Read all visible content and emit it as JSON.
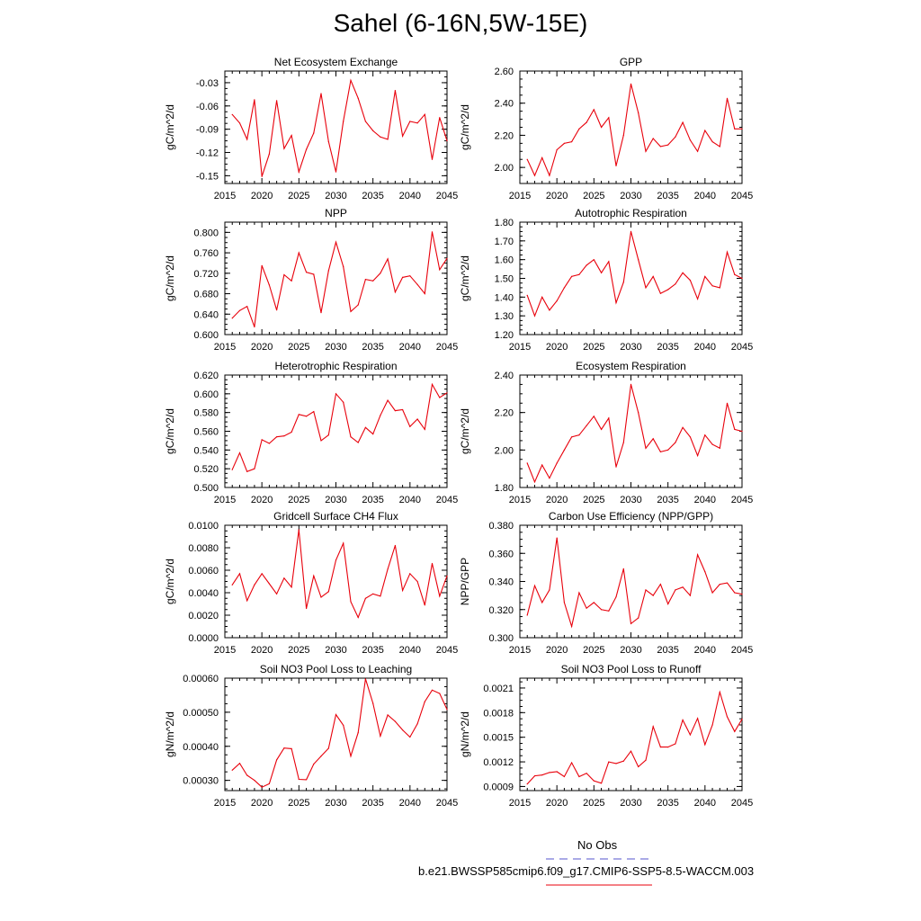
{
  "figure": {
    "title": "Sahel (6-16N,5W-15E)"
  },
  "legend": {
    "obs_label": "No Obs",
    "obs_color": "#5555cc",
    "model_label": "b.e21.BWSSP585cmip6.f09_g17.CMIP6-SSP5-8.5-WACCM.003",
    "model_color": "#e8000b"
  },
  "chart_data": [
    {
      "type": "line",
      "title": "Net Ecosystem Exchange",
      "ylabel": "gC/m^2/d",
      "xlim": [
        2015,
        2045
      ],
      "ylim": [
        -0.16,
        -0.015
      ],
      "xticks": [
        2015,
        2020,
        2025,
        2030,
        2035,
        2040,
        2045
      ],
      "xtick_labels": [
        "2015",
        "2020",
        "2025",
        "2030",
        "2035",
        "2040",
        "2045"
      ],
      "yticks": [
        -0.15,
        -0.12,
        -0.09,
        -0.06,
        -0.03
      ],
      "ytick_labels": [
        "-0.15",
        "-0.12",
        "-0.09",
        "-0.06",
        "-0.03"
      ],
      "x": [
        2016,
        2017,
        2018,
        2019,
        2020,
        2021,
        2022,
        2023,
        2024,
        2025,
        2026,
        2027,
        2028,
        2029,
        2030,
        2031,
        2032,
        2033,
        2034,
        2035,
        2036,
        2037,
        2038,
        2039,
        2040,
        2041,
        2042,
        2043,
        2044,
        2045
      ],
      "series": [
        {
          "name": "model",
          "values": [
            -0.071,
            -0.082,
            -0.103,
            -0.052,
            -0.151,
            -0.122,
            -0.053,
            -0.115,
            -0.098,
            -0.145,
            -0.116,
            -0.095,
            -0.044,
            -0.106,
            -0.145,
            -0.08,
            -0.027,
            -0.05,
            -0.08,
            -0.092,
            -0.1,
            -0.103,
            -0.04,
            -0.099,
            -0.08,
            -0.082,
            -0.071,
            -0.129,
            -0.075,
            -0.105
          ]
        }
      ]
    },
    {
      "type": "line",
      "title": "GPP",
      "ylabel": "gC/m^2/d",
      "xlim": [
        2015,
        2045
      ],
      "ylim": [
        1.9,
        2.6
      ],
      "xticks": [
        2015,
        2020,
        2025,
        2030,
        2035,
        2040,
        2045
      ],
      "xtick_labels": [
        "2015",
        "2020",
        "2025",
        "2030",
        "2035",
        "2040",
        "2045"
      ],
      "yticks": [
        2.0,
        2.2,
        2.4,
        2.6
      ],
      "ytick_labels": [
        "2.00",
        "2.20",
        "2.40",
        "2.60"
      ],
      "x": [
        2016,
        2017,
        2018,
        2019,
        2020,
        2021,
        2022,
        2023,
        2024,
        2025,
        2026,
        2027,
        2028,
        2029,
        2030,
        2031,
        2032,
        2033,
        2034,
        2035,
        2036,
        2037,
        2038,
        2039,
        2040,
        2041,
        2042,
        2043,
        2044,
        2045
      ],
      "series": [
        {
          "name": "model",
          "values": [
            2.05,
            1.95,
            2.06,
            1.95,
            2.11,
            2.15,
            2.16,
            2.24,
            2.28,
            2.36,
            2.25,
            2.31,
            2.01,
            2.2,
            2.52,
            2.34,
            2.1,
            2.18,
            2.13,
            2.14,
            2.19,
            2.28,
            2.17,
            2.1,
            2.23,
            2.16,
            2.13,
            2.43,
            2.24,
            2.24
          ]
        }
      ]
    },
    {
      "type": "line",
      "title": "NPP",
      "ylabel": "gC/m^2/d",
      "xlim": [
        2015,
        2045
      ],
      "ylim": [
        0.6,
        0.82
      ],
      "xticks": [
        2015,
        2020,
        2025,
        2030,
        2035,
        2040,
        2045
      ],
      "xtick_labels": [
        "2015",
        "2020",
        "2025",
        "2030",
        "2035",
        "2040",
        "2045"
      ],
      "yticks": [
        0.6,
        0.64,
        0.68,
        0.72,
        0.76,
        0.8
      ],
      "ytick_labels": [
        "0.600",
        "0.640",
        "0.680",
        "0.720",
        "0.760",
        "0.800"
      ],
      "x": [
        2016,
        2017,
        2018,
        2019,
        2020,
        2021,
        2022,
        2023,
        2024,
        2025,
        2026,
        2027,
        2028,
        2029,
        2030,
        2031,
        2032,
        2033,
        2034,
        2035,
        2036,
        2037,
        2038,
        2039,
        2040,
        2041,
        2042,
        2043,
        2044,
        2045
      ],
      "series": [
        {
          "name": "model",
          "values": [
            0.632,
            0.647,
            0.655,
            0.615,
            0.735,
            0.697,
            0.648,
            0.717,
            0.705,
            0.76,
            0.722,
            0.718,
            0.643,
            0.725,
            0.781,
            0.733,
            0.645,
            0.658,
            0.708,
            0.705,
            0.72,
            0.748,
            0.683,
            0.712,
            0.715,
            0.698,
            0.68,
            0.801,
            0.727,
            0.749
          ]
        }
      ]
    },
    {
      "type": "line",
      "title": "Autotrophic Respiration",
      "ylabel": "gC/m^2/d",
      "xlim": [
        2015,
        2045
      ],
      "ylim": [
        1.2,
        1.8
      ],
      "xticks": [
        2015,
        2020,
        2025,
        2030,
        2035,
        2040,
        2045
      ],
      "xtick_labels": [
        "2015",
        "2020",
        "2025",
        "2030",
        "2035",
        "2040",
        "2045"
      ],
      "yticks": [
        1.2,
        1.3,
        1.4,
        1.5,
        1.6,
        1.7,
        1.8
      ],
      "ytick_labels": [
        "1.20",
        "1.30",
        "1.40",
        "1.50",
        "1.60",
        "1.70",
        "1.80"
      ],
      "x": [
        2016,
        2017,
        2018,
        2019,
        2020,
        2021,
        2022,
        2023,
        2024,
        2025,
        2026,
        2027,
        2028,
        2029,
        2030,
        2031,
        2032,
        2033,
        2034,
        2035,
        2036,
        2037,
        2038,
        2039,
        2040,
        2041,
        2042,
        2043,
        2044,
        2045
      ],
      "series": [
        {
          "name": "model",
          "values": [
            1.41,
            1.3,
            1.4,
            1.33,
            1.38,
            1.45,
            1.51,
            1.52,
            1.57,
            1.6,
            1.53,
            1.59,
            1.37,
            1.48,
            1.75,
            1.6,
            1.45,
            1.51,
            1.42,
            1.44,
            1.47,
            1.53,
            1.49,
            1.39,
            1.51,
            1.46,
            1.45,
            1.64,
            1.52,
            1.5
          ]
        }
      ]
    },
    {
      "type": "line",
      "title": "Heterotrophic Respiration",
      "ylabel": "gC/m^2/d",
      "xlim": [
        2015,
        2045
      ],
      "ylim": [
        0.5,
        0.62
      ],
      "xticks": [
        2015,
        2020,
        2025,
        2030,
        2035,
        2040,
        2045
      ],
      "xtick_labels": [
        "2015",
        "2020",
        "2025",
        "2030",
        "2035",
        "2040",
        "2045"
      ],
      "yticks": [
        0.5,
        0.52,
        0.54,
        0.56,
        0.58,
        0.6,
        0.62
      ],
      "ytick_labels": [
        "0.500",
        "0.520",
        "0.540",
        "0.560",
        "0.580",
        "0.600",
        "0.620"
      ],
      "x": [
        2016,
        2017,
        2018,
        2019,
        2020,
        2021,
        2022,
        2023,
        2024,
        2025,
        2026,
        2027,
        2028,
        2029,
        2030,
        2031,
        2032,
        2033,
        2034,
        2035,
        2036,
        2037,
        2038,
        2039,
        2040,
        2041,
        2042,
        2043,
        2044,
        2045
      ],
      "series": [
        {
          "name": "model",
          "values": [
            0.519,
            0.537,
            0.517,
            0.52,
            0.551,
            0.547,
            0.554,
            0.555,
            0.559,
            0.578,
            0.576,
            0.581,
            0.55,
            0.556,
            0.6,
            0.591,
            0.554,
            0.548,
            0.564,
            0.557,
            0.577,
            0.593,
            0.582,
            0.583,
            0.565,
            0.573,
            0.562,
            0.61,
            0.596,
            0.601
          ]
        }
      ]
    },
    {
      "type": "line",
      "title": "Ecosystem Respiration",
      "ylabel": "gC/m^2/d",
      "xlim": [
        2015,
        2045
      ],
      "ylim": [
        1.8,
        2.4
      ],
      "xticks": [
        2015,
        2020,
        2025,
        2030,
        2035,
        2040,
        2045
      ],
      "xtick_labels": [
        "2015",
        "2020",
        "2025",
        "2030",
        "2035",
        "2040",
        "2045"
      ],
      "yticks": [
        1.8,
        2.0,
        2.2,
        2.4
      ],
      "ytick_labels": [
        "1.80",
        "2.00",
        "2.20",
        "2.40"
      ],
      "x": [
        2016,
        2017,
        2018,
        2019,
        2020,
        2021,
        2022,
        2023,
        2024,
        2025,
        2026,
        2027,
        2028,
        2029,
        2030,
        2031,
        2032,
        2033,
        2034,
        2035,
        2036,
        2037,
        2038,
        2039,
        2040,
        2041,
        2042,
        2043,
        2044,
        2045
      ],
      "series": [
        {
          "name": "model",
          "values": [
            1.93,
            1.83,
            1.92,
            1.85,
            1.93,
            2.0,
            2.07,
            2.08,
            2.13,
            2.18,
            2.11,
            2.17,
            1.91,
            2.04,
            2.35,
            2.2,
            2.01,
            2.06,
            1.99,
            2.0,
            2.04,
            2.12,
            2.07,
            1.97,
            2.08,
            2.03,
            2.01,
            2.25,
            2.11,
            2.1
          ]
        }
      ]
    },
    {
      "type": "line",
      "title": "Gridcell Surface CH4 Flux",
      "ylabel": "gC/m^2/d",
      "xlim": [
        2015,
        2045
      ],
      "ylim": [
        0.0,
        0.01
      ],
      "xticks": [
        2015,
        2020,
        2025,
        2030,
        2035,
        2040,
        2045
      ],
      "xtick_labels": [
        "2015",
        "2020",
        "2025",
        "2030",
        "2035",
        "2040",
        "2045"
      ],
      "yticks": [
        0.0,
        0.002,
        0.004,
        0.006,
        0.008,
        0.01
      ],
      "ytick_labels": [
        "0.0000",
        "0.0020",
        "0.0040",
        "0.0060",
        "0.0080",
        "0.0100"
      ],
      "x": [
        2016,
        2017,
        2018,
        2019,
        2020,
        2021,
        2022,
        2023,
        2024,
        2025,
        2026,
        2027,
        2028,
        2029,
        2030,
        2031,
        2032,
        2033,
        2034,
        2035,
        2036,
        2037,
        2038,
        2039,
        2040,
        2041,
        2042,
        2043,
        2044,
        2045
      ],
      "series": [
        {
          "name": "model",
          "values": [
            0.0047,
            0.0057,
            0.0033,
            0.0047,
            0.0057,
            0.0048,
            0.0039,
            0.0053,
            0.0045,
            0.0096,
            0.0026,
            0.0055,
            0.0036,
            0.0041,
            0.0069,
            0.0084,
            0.0032,
            0.0018,
            0.0035,
            0.0039,
            0.0037,
            0.0061,
            0.0082,
            0.0042,
            0.0057,
            0.005,
            0.0029,
            0.0066,
            0.0037,
            0.0055
          ]
        }
      ]
    },
    {
      "type": "line",
      "title": "Carbon Use Efficiency (NPP/GPP)",
      "ylabel": "NPP/GPP",
      "xlim": [
        2015,
        2045
      ],
      "ylim": [
        0.3,
        0.38
      ],
      "xticks": [
        2015,
        2020,
        2025,
        2030,
        2035,
        2040,
        2045
      ],
      "xtick_labels": [
        "2015",
        "2020",
        "2025",
        "2030",
        "2035",
        "2040",
        "2045"
      ],
      "yticks": [
        0.3,
        0.32,
        0.34,
        0.36,
        0.38
      ],
      "ytick_labels": [
        "0.300",
        "0.320",
        "0.340",
        "0.360",
        "0.380"
      ],
      "x": [
        2016,
        2017,
        2018,
        2019,
        2020,
        2021,
        2022,
        2023,
        2024,
        2025,
        2026,
        2027,
        2028,
        2029,
        2030,
        2031,
        2032,
        2033,
        2034,
        2035,
        2036,
        2037,
        2038,
        2039,
        2040,
        2041,
        2042,
        2043,
        2044,
        2045
      ],
      "series": [
        {
          "name": "model",
          "values": [
            0.316,
            0.337,
            0.325,
            0.334,
            0.371,
            0.325,
            0.308,
            0.332,
            0.321,
            0.325,
            0.32,
            0.319,
            0.329,
            0.349,
            0.31,
            0.314,
            0.334,
            0.33,
            0.338,
            0.324,
            0.334,
            0.336,
            0.33,
            0.359,
            0.347,
            0.332,
            0.338,
            0.339,
            0.332,
            0.331
          ]
        }
      ]
    },
    {
      "type": "line",
      "title": "Soil NO3 Pool Loss to Leaching",
      "ylabel": "gN/m^2/d",
      "xlim": [
        2015,
        2045
      ],
      "ylim": [
        0.00027,
        0.0006
      ],
      "xticks": [
        2015,
        2020,
        2025,
        2030,
        2035,
        2040,
        2045
      ],
      "xtick_labels": [
        "2015",
        "2020",
        "2025",
        "2030",
        "2035",
        "2040",
        "2045"
      ],
      "yticks": [
        0.0003,
        0.0004,
        0.0005,
        0.0006
      ],
      "ytick_labels": [
        "0.00030",
        "0.00040",
        "0.00050",
        "0.00060"
      ],
      "x": [
        2016,
        2017,
        2018,
        2019,
        2020,
        2021,
        2022,
        2023,
        2024,
        2025,
        2026,
        2027,
        2028,
        2029,
        2030,
        2031,
        2032,
        2033,
        2034,
        2035,
        2036,
        2037,
        2038,
        2039,
        2040,
        2041,
        2042,
        2043,
        2044,
        2045
      ],
      "series": [
        {
          "name": "model",
          "values": [
            0.00033,
            0.00035,
            0.000315,
            0.0003,
            0.00028,
            0.00029,
            0.00036,
            0.000395,
            0.000393,
            0.000303,
            0.000302,
            0.000348,
            0.000371,
            0.000394,
            0.000493,
            0.000462,
            0.000371,
            0.00044,
            0.000598,
            0.000526,
            0.00043,
            0.000492,
            0.000473,
            0.000448,
            0.000427,
            0.000466,
            0.000531,
            0.000565,
            0.000555,
            0.000508
          ]
        }
      ]
    },
    {
      "type": "line",
      "title": "Soil NO3 Pool Loss to Runoff",
      "ylabel": "gN/m^2/d",
      "xlim": [
        2015,
        2045
      ],
      "ylim": [
        0.00085,
        0.00222
      ],
      "xticks": [
        2015,
        2020,
        2025,
        2030,
        2035,
        2040,
        2045
      ],
      "xtick_labels": [
        "2015",
        "2020",
        "2025",
        "2030",
        "2035",
        "2040",
        "2045"
      ],
      "yticks": [
        0.0009,
        0.0012,
        0.0015,
        0.0018,
        0.0021
      ],
      "ytick_labels": [
        "0.0009",
        "0.0012",
        "0.0015",
        "0.0018",
        "0.0021"
      ],
      "x": [
        2016,
        2017,
        2018,
        2019,
        2020,
        2021,
        2022,
        2023,
        2024,
        2025,
        2026,
        2027,
        2028,
        2029,
        2030,
        2031,
        2032,
        2033,
        2034,
        2035,
        2036,
        2037,
        2038,
        2039,
        2040,
        2041,
        2042,
        2043,
        2044,
        2045
      ],
      "series": [
        {
          "name": "model",
          "values": [
            0.00093,
            0.00103,
            0.00104,
            0.00107,
            0.00108,
            0.00102,
            0.00119,
            0.00102,
            0.00106,
            0.00097,
            0.00094,
            0.0012,
            0.00118,
            0.00121,
            0.00133,
            0.00114,
            0.00122,
            0.00163,
            0.00138,
            0.00138,
            0.00142,
            0.00171,
            0.00153,
            0.00173,
            0.00141,
            0.00165,
            0.00205,
            0.00175,
            0.00157,
            0.00172
          ]
        }
      ]
    }
  ]
}
